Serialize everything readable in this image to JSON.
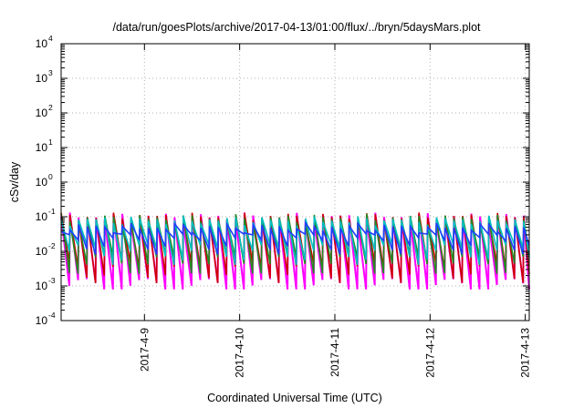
{
  "chart_data": {
    "type": "line",
    "title": "/data/run/goesPlots/archive/2017-04-13/01:00/flux/../bryn/5daysMars.plot",
    "xlabel": "Coordinated Universal Time (UTC)",
    "ylabel": "cSv/day",
    "yscale": "log",
    "ylim": [
      0.0001,
      10000
    ],
    "xlim": [
      "2017-04-08T03:00",
      "2017-04-13T01:00"
    ],
    "grid": true,
    "legend": "none",
    "x_ticks": [
      "2017-4-9",
      "2017-4-10",
      "2017-4-11",
      "2017-4-12",
      "2017-4-13"
    ],
    "y_ticks": [
      {
        "base": "10",
        "exp": "-4"
      },
      {
        "base": "10",
        "exp": "-3"
      },
      {
        "base": "10",
        "exp": "-2"
      },
      {
        "base": "10",
        "exp": "-1"
      },
      {
        "base": "10",
        "exp": "0"
      },
      {
        "base": "10",
        "exp": "1"
      },
      {
        "base": "10",
        "exp": "2"
      },
      {
        "base": "10",
        "exp": "3"
      },
      {
        "base": "10",
        "exp": "4"
      }
    ],
    "series_pattern": {
      "peak_interval_hours": 2.2,
      "peak_values": [
        0.1,
        0.1,
        0.09,
        0.08,
        0.05
      ],
      "trough_values": [
        0.001,
        0.003,
        0.005,
        0.01,
        0.02
      ]
    },
    "series": [
      {
        "color": "#ff00ff"
      },
      {
        "color": "#cc0000"
      },
      {
        "color": "#228b22"
      },
      {
        "color": "#00bfbf"
      },
      {
        "color": "#1f3fff"
      }
    ]
  }
}
